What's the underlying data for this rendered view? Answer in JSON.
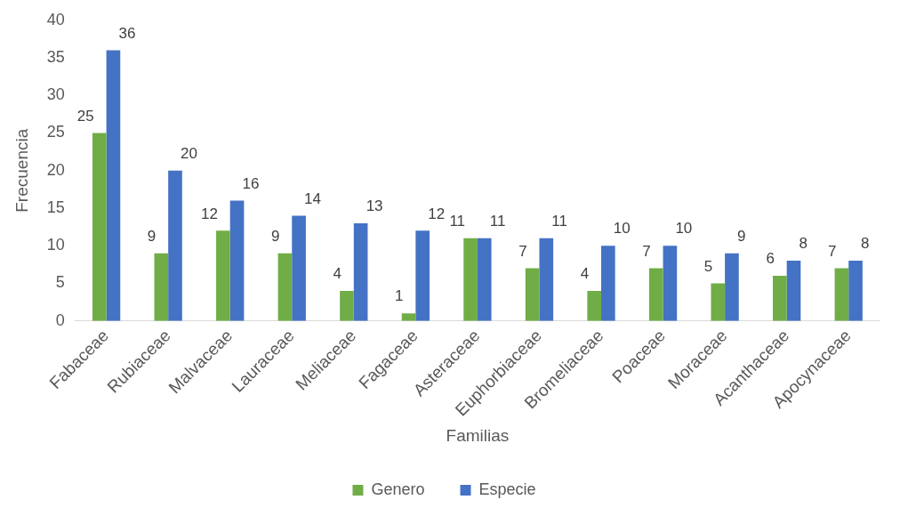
{
  "chart_data": {
    "type": "bar",
    "xlabel": "Familias",
    "ylabel": "Frecuencia",
    "categories": [
      "Fabaceae",
      "Rubiaceae",
      "Malvaceae",
      "Lauraceae",
      "Meliaceae",
      "Fagaceae",
      "Asteraceae",
      "Euphorbiaceae",
      "Bromeliaceae",
      "Poaceae",
      "Moraceae",
      "Acanthaceae",
      "Apocynaceae"
    ],
    "series": [
      {
        "name": "Genero",
        "color": "#70ad47",
        "values": [
          25,
          9,
          12,
          9,
          4,
          1,
          11,
          7,
          4,
          7,
          5,
          6,
          7
        ]
      },
      {
        "name": "Especie",
        "color": "#4472c4",
        "values": [
          36,
          20,
          16,
          14,
          13,
          12,
          11,
          11,
          10,
          10,
          9,
          8,
          8
        ]
      }
    ],
    "ylim": [
      0,
      40
    ],
    "yticks": [
      0,
      5,
      10,
      15,
      20,
      25,
      30,
      35,
      40
    ],
    "grid": false,
    "legend": "bottom",
    "data_labels": true
  }
}
